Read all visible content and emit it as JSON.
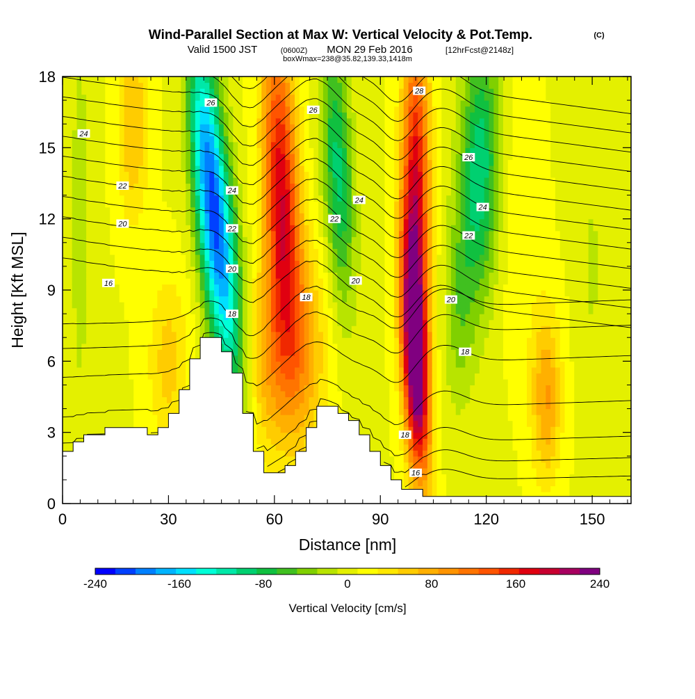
{
  "header": {
    "title": "Wind-Parallel Section at Max W: Vertical Velocity & Pot.Temp.",
    "copyright": "(C)",
    "valid_prefix": "Valid 1500 JST",
    "valid_utc": "(0600Z)",
    "valid_date": "MON 29 Feb 2016",
    "forecast": "[12hrFcst@2148z]",
    "box_info": "boxWmax=238@35.82,139.33,1418m"
  },
  "colors": {
    "terrain": "#ffffff",
    "contour_line": "#000000",
    "axis": "#000000"
  },
  "chart_data": {
    "type": "heatmap",
    "xlabel": "Distance [nm]",
    "ylabel": "Height [Kft MSL]",
    "xlim": [
      0,
      161
    ],
    "ylim": [
      0,
      18
    ],
    "x_ticks": [
      0,
      30,
      60,
      90,
      120,
      150
    ],
    "y_ticks": [
      0,
      3,
      6,
      9,
      12,
      15,
      18
    ],
    "grid": false,
    "colorbar": {
      "label": "Vertical Velocity [cm/s]",
      "placement": "bottom",
      "range": [
        -240,
        240
      ],
      "tick_labels": [
        "-240",
        "-160",
        "-80",
        "0",
        "80",
        "160",
        "240"
      ],
      "tick_values": [
        -240,
        -160,
        -80,
        0,
        80,
        160,
        240
      ],
      "colors": [
        "#0000ff",
        "#0040ff",
        "#0080ff",
        "#00b4ff",
        "#00e0ff",
        "#00ffd8",
        "#00e8a8",
        "#00d070",
        "#10c040",
        "#40c020",
        "#80d000",
        "#b8e400",
        "#e4f000",
        "#ffff00",
        "#ffe800",
        "#ffcc00",
        "#ffb000",
        "#ff9400",
        "#ff7400",
        "#ff5400",
        "#f02800",
        "#e00010",
        "#c80030",
        "#a80060",
        "#800080"
      ]
    },
    "terrain_profile": {
      "x": [
        0,
        3,
        6,
        9,
        12,
        15,
        18,
        21,
        24,
        27,
        30,
        33,
        36,
        39,
        42,
        45,
        48,
        51,
        54,
        57,
        60,
        63,
        66,
        69,
        72,
        75,
        78,
        81,
        84,
        87,
        90,
        93,
        96,
        99,
        102,
        105,
        108,
        111,
        114,
        117,
        120,
        123,
        126,
        129,
        132,
        135,
        138,
        141,
        144,
        147,
        150,
        153,
        156,
        159,
        161
      ],
      "z_kft": [
        2.2,
        2.6,
        2.9,
        2.9,
        3.2,
        3.2,
        3.2,
        3.2,
        2.9,
        3.2,
        3.8,
        4.8,
        6.1,
        7.0,
        7.0,
        6.4,
        5.5,
        3.8,
        2.2,
        1.3,
        1.3,
        1.6,
        2.2,
        3.2,
        4.1,
        4.1,
        3.8,
        3.5,
        2.9,
        2.2,
        1.6,
        1.0,
        0.6,
        0.6,
        0.3,
        0.3,
        0.3,
        0.3,
        0.3,
        0.3,
        0.3,
        0.3,
        0.3,
        0.3,
        0.3,
        0.3,
        0.3,
        0.3,
        0.3,
        0.3,
        0.3,
        0.3,
        0.3,
        0.3,
        0.3
      ]
    },
    "vertical_velocity_features": [
      {
        "x": 45,
        "z": 10.5,
        "value": -170,
        "sx": 3.5,
        "sz": 4.5,
        "tilt": 0.55
      },
      {
        "x": 40,
        "z": 15,
        "value": -110,
        "sx": 3,
        "sz": 4,
        "tilt": 0.4
      },
      {
        "x": 62,
        "z": 13,
        "value": 170,
        "sx": 3.5,
        "sz": 5,
        "tilt": 0.25
      },
      {
        "x": 58,
        "z": 6,
        "value": 60,
        "sx": 4,
        "sz": 3,
        "tilt": 0
      },
      {
        "x": 68,
        "z": 6.5,
        "value": 70,
        "sx": 5,
        "sz": 3,
        "tilt": 0
      },
      {
        "x": 78,
        "z": 14,
        "value": -100,
        "sx": 3,
        "sz": 4,
        "tilt": 0.3
      },
      {
        "x": 100,
        "z": 6,
        "value": 230,
        "sx": 2.5,
        "sz": 3.5,
        "tilt": 0.3
      },
      {
        "x": 100,
        "z": 13,
        "value": 170,
        "sx": 2.8,
        "sz": 5,
        "tilt": 0
      },
      {
        "x": 118,
        "z": 14,
        "value": -110,
        "sx": 4,
        "sz": 4,
        "tilt": -0.15
      },
      {
        "x": 112,
        "z": 8,
        "value": -40,
        "sx": 3,
        "sz": 3,
        "tilt": 0
      },
      {
        "x": 137,
        "z": 4.5,
        "value": 80,
        "sx": 3,
        "sz": 2.5,
        "tilt": 0
      },
      {
        "x": 30,
        "z": 6,
        "value": 50,
        "sx": 4,
        "sz": 2.5,
        "tilt": 0
      },
      {
        "x": 20,
        "z": 16,
        "value": 60,
        "sx": 3,
        "sz": 3,
        "tilt": 0
      },
      {
        "x": 5,
        "z": 12,
        "value": -30,
        "sx": 2,
        "sz": 6,
        "tilt": 0
      },
      {
        "x": 150,
        "z": 10,
        "value": -20,
        "sx": 3,
        "sz": 4,
        "tilt": 0
      },
      {
        "x": 130,
        "z": 12,
        "value": 20,
        "sx": 4,
        "sz": 4,
        "tilt": 0
      }
    ],
    "theta_contours": [
      {
        "base_kft": 1.0,
        "label": "16"
      },
      {
        "base_kft": 2.0,
        "label": ""
      },
      {
        "base_kft": 3.0,
        "label": "18"
      },
      {
        "base_kft": 4.5,
        "label": ""
      },
      {
        "base_kft": 6.3,
        "label": "18"
      },
      {
        "base_kft": 7.5,
        "label": ""
      },
      {
        "base_kft": 8.5,
        "label": "16"
      },
      {
        "base_kft": 9.3,
        "label": "18"
      },
      {
        "base_kft": 10.1,
        "label": "20"
      },
      {
        "base_kft": 10.9,
        "label": ""
      },
      {
        "base_kft": 11.7,
        "label": "20"
      },
      {
        "base_kft": 12.5,
        "label": "22"
      },
      {
        "base_kft": 13.3,
        "label": "22"
      },
      {
        "base_kft": 14.1,
        "label": "24"
      },
      {
        "base_kft": 14.9,
        "label": ""
      },
      {
        "base_kft": 15.7,
        "label": "24"
      },
      {
        "base_kft": 16.5,
        "label": "26"
      },
      {
        "base_kft": 17.3,
        "label": "26"
      },
      {
        "base_kft": 18.1,
        "label": "28"
      }
    ],
    "contour_labels": [
      {
        "text": "24",
        "x": 6,
        "z": 15.6
      },
      {
        "text": "22",
        "x": 17,
        "z": 13.4
      },
      {
        "text": "20",
        "x": 17,
        "z": 11.8
      },
      {
        "text": "16",
        "x": 13,
        "z": 9.3
      },
      {
        "text": "26",
        "x": 42,
        "z": 16.9
      },
      {
        "text": "24",
        "x": 48,
        "z": 13.2
      },
      {
        "text": "22",
        "x": 48,
        "z": 11.6
      },
      {
        "text": "20",
        "x": 48,
        "z": 9.9
      },
      {
        "text": "18",
        "x": 48,
        "z": 8.0
      },
      {
        "text": "26",
        "x": 71,
        "z": 16.6
      },
      {
        "text": "18",
        "x": 69,
        "z": 8.7
      },
      {
        "text": "24",
        "x": 84,
        "z": 12.8
      },
      {
        "text": "22",
        "x": 77,
        "z": 12.0
      },
      {
        "text": "20",
        "x": 83,
        "z": 9.4
      },
      {
        "text": "28",
        "x": 101,
        "z": 17.4
      },
      {
        "text": "18",
        "x": 97,
        "z": 2.9
      },
      {
        "text": "16",
        "x": 100,
        "z": 1.3
      },
      {
        "text": "26",
        "x": 115,
        "z": 14.6
      },
      {
        "text": "24",
        "x": 119,
        "z": 12.5
      },
      {
        "text": "22",
        "x": 115,
        "z": 11.3
      },
      {
        "text": "20",
        "x": 110,
        "z": 8.6
      },
      {
        "text": "18",
        "x": 114,
        "z": 6.4
      }
    ]
  }
}
